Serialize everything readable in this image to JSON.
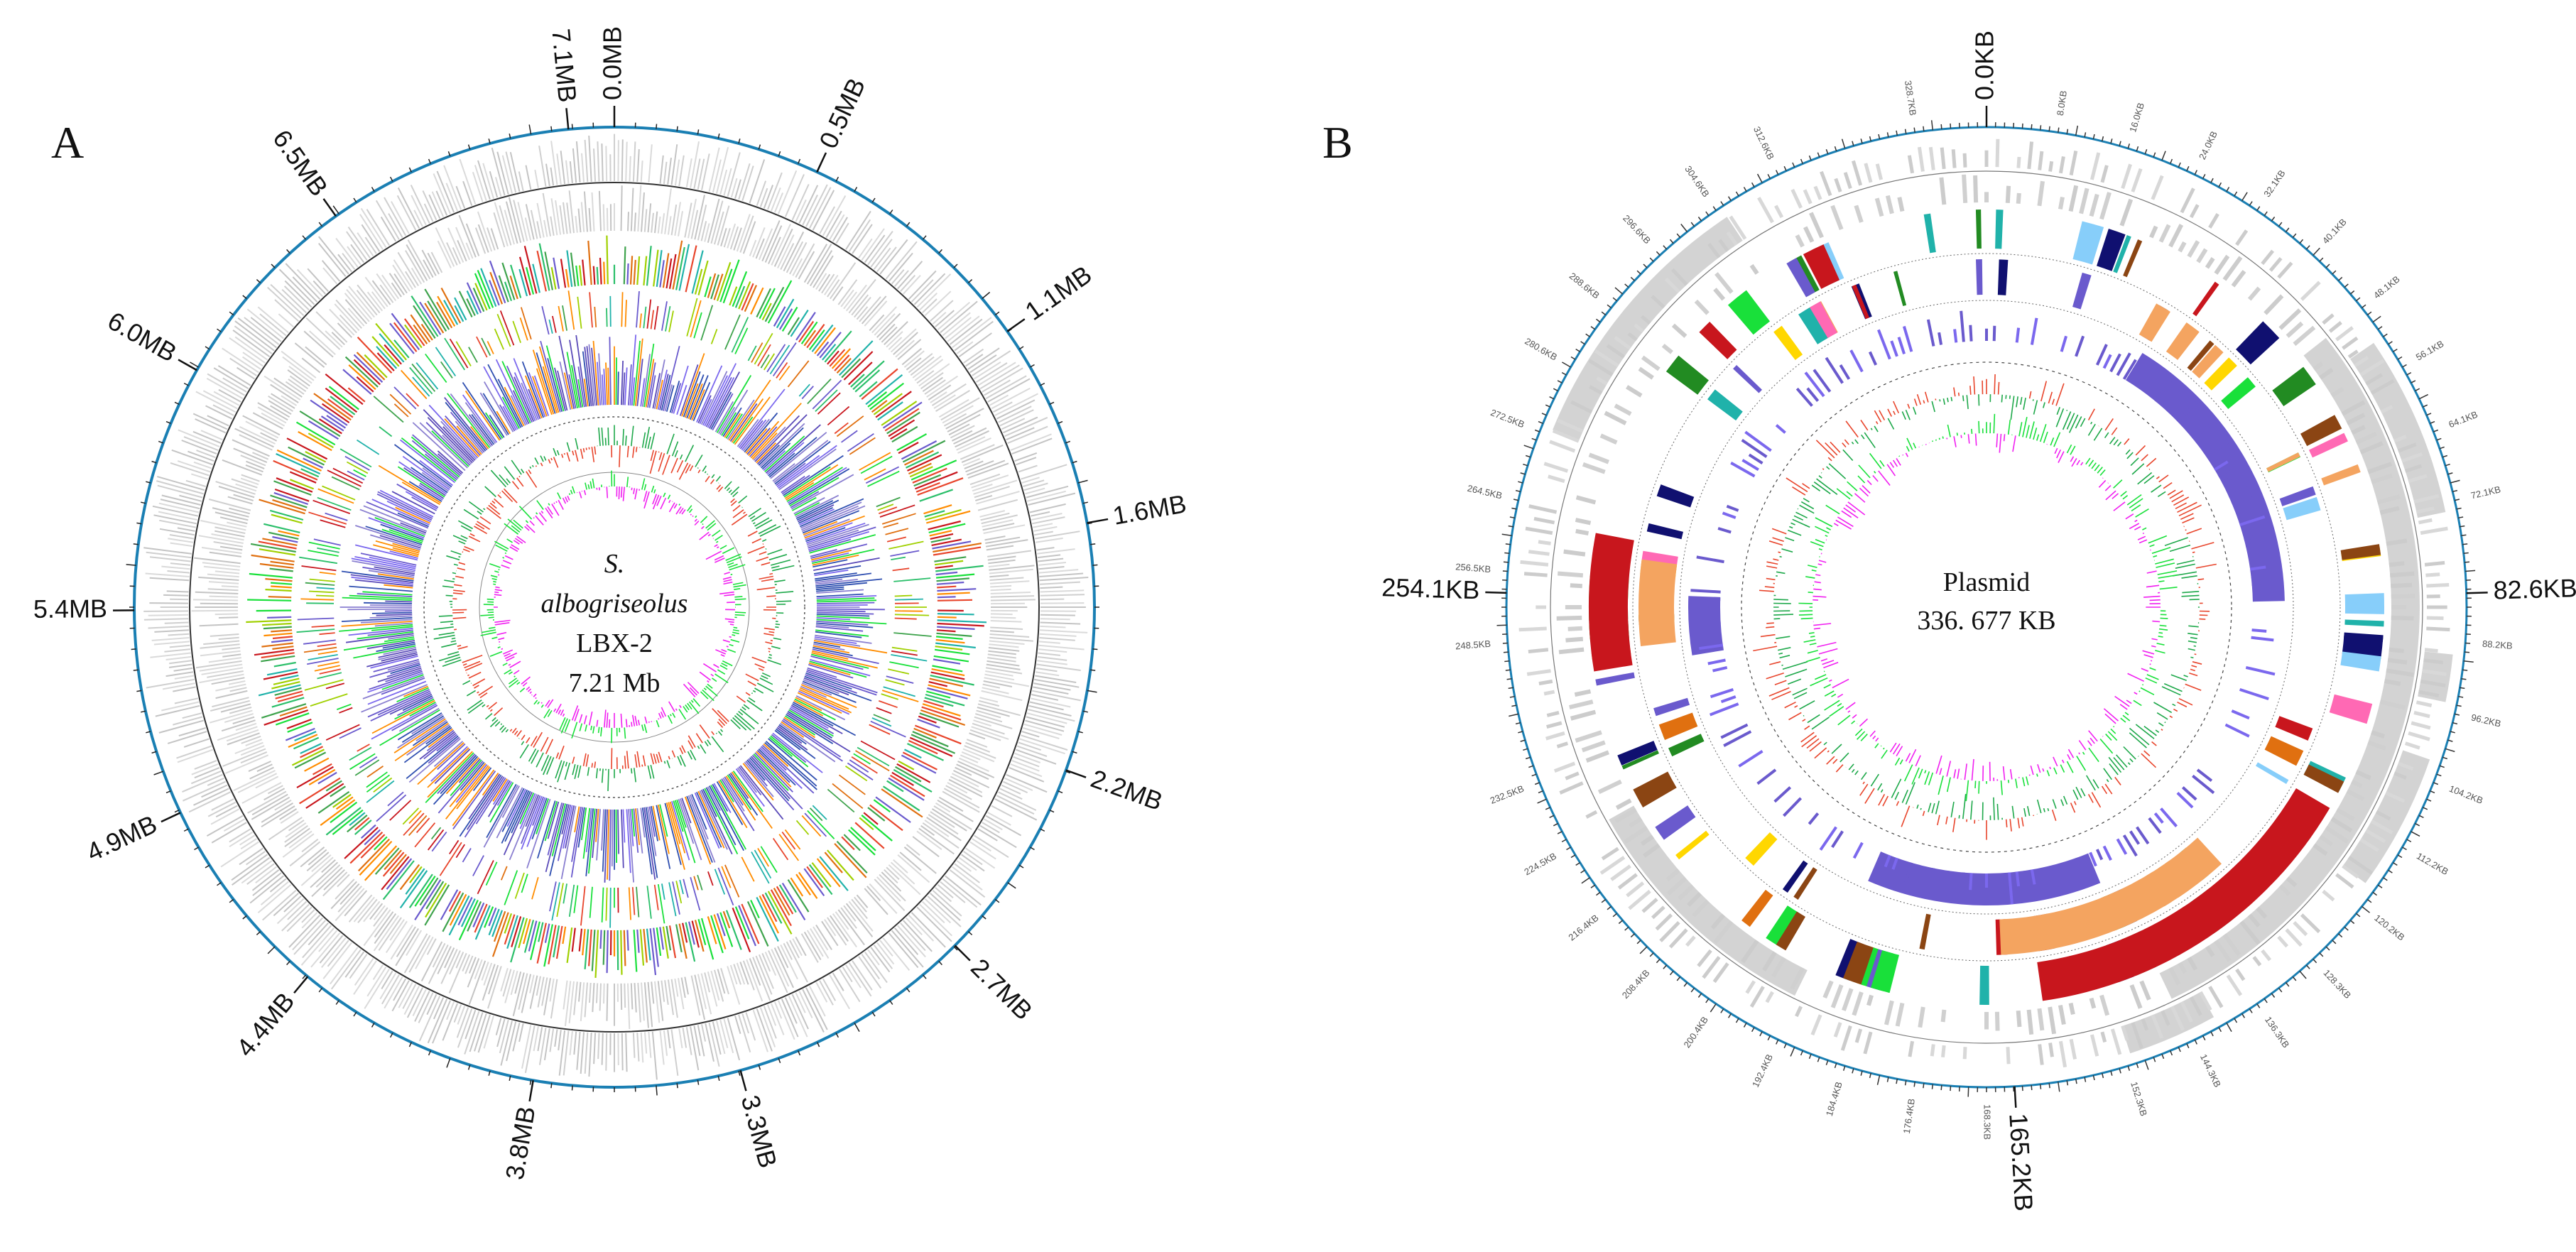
{
  "panel_a": {
    "letter": "A",
    "organism_line1": "S.",
    "organism_line2": "albogriseolus",
    "strain": "LBX-2",
    "genome_size": "7.21 Mb",
    "total_mb": 7.21,
    "tick_labels": [
      {
        "text": "0.0MB",
        "pos": 0.0
      },
      {
        "text": "0.5MB",
        "pos": 0.5
      },
      {
        "text": "1.1MB",
        "pos": 1.1
      },
      {
        "text": "1.6MB",
        "pos": 1.6
      },
      {
        "text": "2.2MB",
        "pos": 2.2
      },
      {
        "text": "2.7MB",
        "pos": 2.7
      },
      {
        "text": "3.3MB",
        "pos": 3.3
      },
      {
        "text": "3.8MB",
        "pos": 3.8
      },
      {
        "text": "4.4MB",
        "pos": 4.4
      },
      {
        "text": "4.9MB",
        "pos": 4.9
      },
      {
        "text": "5.4MB",
        "pos": 5.4
      },
      {
        "text": "6.0MB",
        "pos": 6.0
      },
      {
        "text": "6.5MB",
        "pos": 6.5
      },
      {
        "text": "7.1MB",
        "pos": 7.1
      }
    ]
  },
  "panel_b": {
    "letter": "B",
    "label_line1": "Plasmid",
    "label_line2": "336. 677 KB",
    "total_kb": 336.677,
    "major_tick_labels": [
      {
        "text": "0.0KB",
        "pos": 0.0
      },
      {
        "text": "82.6KB",
        "pos": 82.6
      },
      {
        "text": "165.2KB",
        "pos": 165.2
      },
      {
        "text": "254.1KB",
        "pos": 254.1
      }
    ]
  },
  "colors": {
    "ring_gray": "#d3d3d3",
    "axis_blue": "#1a7fb3",
    "gc_skew_pos": "#e8452c",
    "gc_skew_neg": "#1ea84a",
    "gc_content": "#f020f0",
    "green_bright": "#19e03a",
    "cog_purple": "#6a5acd",
    "cog_red": "#c8161d",
    "cog_orange": "#f4a460",
    "cog_teal": "#20b2aa",
    "cog_navy": "#101070",
    "cog_brown": "#8b4513",
    "cog_yellow": "#ffd700",
    "cog_lightblue": "#87cefa",
    "cog_darkgreen": "#228b22",
    "cog_pink": "#ff69b4",
    "cog_darkorange": "#e07010"
  }
}
